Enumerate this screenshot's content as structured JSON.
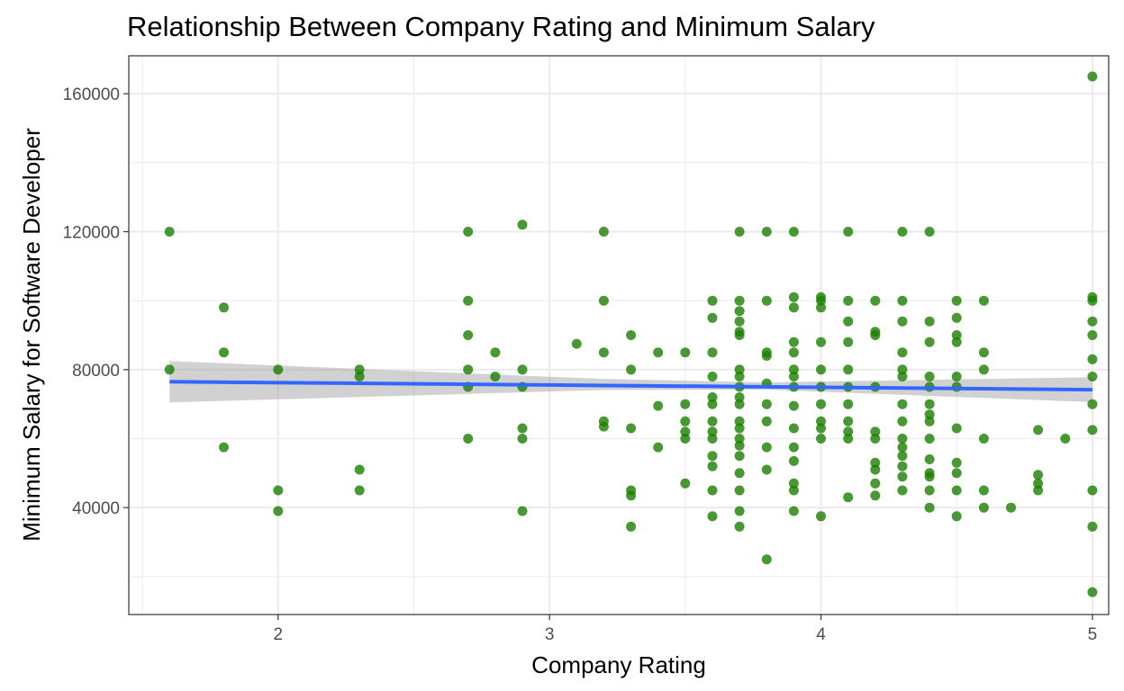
{
  "chart_data": {
    "type": "scatter",
    "title": "Relationship Between Company Rating and Minimum Salary",
    "xlabel": "Company Rating",
    "ylabel": "Minimum Salary for Software Developer",
    "xlim": [
      1.45,
      5.06
    ],
    "ylim": [
      9000,
      171000
    ],
    "x_ticks": [
      2,
      3,
      4,
      5
    ],
    "x_tick_labels": [
      "2",
      "3",
      "4",
      "5"
    ],
    "x_minor_ticks": [
      1.5,
      2.5,
      3.5,
      4.5
    ],
    "y_ticks": [
      40000,
      80000,
      120000,
      160000
    ],
    "y_tick_labels": [
      "40000",
      "80000",
      "120000",
      "160000"
    ],
    "y_minor_ticks": [
      20000,
      60000,
      100000,
      140000
    ],
    "grid": true,
    "legend": "none",
    "colors": {
      "points": "#1a8000",
      "fit_line": "#3366ff",
      "confidence_band": "#999999",
      "grid": "#ebebeb",
      "panel_border": "#333333"
    },
    "series": [
      {
        "values": [
          [
            1.6,
            120000
          ],
          [
            1.6,
            80000
          ],
          [
            1.8,
            98000
          ],
          [
            1.8,
            85000
          ],
          [
            1.8,
            57500
          ],
          [
            2.0,
            80000
          ],
          [
            2.0,
            45000
          ],
          [
            2.0,
            39000
          ],
          [
            2.3,
            80000
          ],
          [
            2.3,
            78000
          ],
          [
            2.3,
            51000
          ],
          [
            2.3,
            45000
          ],
          [
            2.7,
            120000
          ],
          [
            2.7,
            100000
          ],
          [
            2.7,
            90000
          ],
          [
            2.7,
            80000
          ],
          [
            2.7,
            75000
          ],
          [
            2.7,
            60000
          ],
          [
            2.8,
            85000
          ],
          [
            2.8,
            78000
          ],
          [
            2.9,
            122000
          ],
          [
            2.9,
            80000
          ],
          [
            2.9,
            75000
          ],
          [
            2.9,
            63000
          ],
          [
            2.9,
            60000
          ],
          [
            2.9,
            39000
          ],
          [
            3.1,
            87500
          ],
          [
            3.2,
            120000
          ],
          [
            3.2,
            100000
          ],
          [
            3.2,
            85000
          ],
          [
            3.2,
            65000
          ],
          [
            3.2,
            63500
          ],
          [
            3.3,
            90000
          ],
          [
            3.3,
            80000
          ],
          [
            3.3,
            63000
          ],
          [
            3.3,
            45000
          ],
          [
            3.3,
            43500
          ],
          [
            3.3,
            34500
          ],
          [
            3.4,
            85000
          ],
          [
            3.4,
            69500
          ],
          [
            3.4,
            57500
          ],
          [
            3.5,
            85000
          ],
          [
            3.5,
            70000
          ],
          [
            3.5,
            65000
          ],
          [
            3.5,
            62000
          ],
          [
            3.5,
            60000
          ],
          [
            3.5,
            47000
          ],
          [
            3.6,
            100000
          ],
          [
            3.6,
            95000
          ],
          [
            3.6,
            85000
          ],
          [
            3.6,
            78000
          ],
          [
            3.6,
            72000
          ],
          [
            3.6,
            70000
          ],
          [
            3.6,
            65000
          ],
          [
            3.6,
            62000
          ],
          [
            3.6,
            60000
          ],
          [
            3.6,
            55000
          ],
          [
            3.6,
            52000
          ],
          [
            3.6,
            45000
          ],
          [
            3.6,
            37500
          ],
          [
            3.7,
            120000
          ],
          [
            3.7,
            100000
          ],
          [
            3.7,
            97000
          ],
          [
            3.7,
            94000
          ],
          [
            3.7,
            91000
          ],
          [
            3.7,
            90000
          ],
          [
            3.7,
            80000
          ],
          [
            3.7,
            78000
          ],
          [
            3.7,
            75000
          ],
          [
            3.7,
            72000
          ],
          [
            3.7,
            70000
          ],
          [
            3.7,
            65000
          ],
          [
            3.7,
            63000
          ],
          [
            3.7,
            60000
          ],
          [
            3.7,
            58000
          ],
          [
            3.7,
            55000
          ],
          [
            3.7,
            50000
          ],
          [
            3.7,
            45000
          ],
          [
            3.7,
            39000
          ],
          [
            3.7,
            34500
          ],
          [
            3.8,
            120000
          ],
          [
            3.8,
            100000
          ],
          [
            3.8,
            85000
          ],
          [
            3.8,
            84000
          ],
          [
            3.8,
            76000
          ],
          [
            3.8,
            70000
          ],
          [
            3.8,
            65000
          ],
          [
            3.8,
            57500
          ],
          [
            3.8,
            51000
          ],
          [
            3.8,
            25000
          ],
          [
            3.9,
            120000
          ],
          [
            3.9,
            101000
          ],
          [
            3.9,
            98000
          ],
          [
            3.9,
            88000
          ],
          [
            3.9,
            85000
          ],
          [
            3.9,
            80000
          ],
          [
            3.9,
            78000
          ],
          [
            3.9,
            75000
          ],
          [
            3.9,
            69500
          ],
          [
            3.9,
            63000
          ],
          [
            3.9,
            57500
          ],
          [
            3.9,
            53500
          ],
          [
            3.9,
            47000
          ],
          [
            3.9,
            45000
          ],
          [
            3.9,
            39000
          ],
          [
            4.0,
            101000
          ],
          [
            4.0,
            100000
          ],
          [
            4.0,
            98000
          ],
          [
            4.0,
            88000
          ],
          [
            4.0,
            80000
          ],
          [
            4.0,
            75000
          ],
          [
            4.0,
            70000
          ],
          [
            4.0,
            65000
          ],
          [
            4.0,
            63000
          ],
          [
            4.0,
            60000
          ],
          [
            4.0,
            37500
          ],
          [
            4.1,
            120000
          ],
          [
            4.1,
            100000
          ],
          [
            4.1,
            94000
          ],
          [
            4.1,
            88000
          ],
          [
            4.1,
            80000
          ],
          [
            4.1,
            75000
          ],
          [
            4.1,
            70000
          ],
          [
            4.1,
            65000
          ],
          [
            4.1,
            62000
          ],
          [
            4.1,
            60000
          ],
          [
            4.1,
            43000
          ],
          [
            4.2,
            100000
          ],
          [
            4.2,
            91000
          ],
          [
            4.2,
            90000
          ],
          [
            4.2,
            75000
          ],
          [
            4.2,
            62000
          ],
          [
            4.2,
            60000
          ],
          [
            4.2,
            53000
          ],
          [
            4.2,
            51000
          ],
          [
            4.2,
            47000
          ],
          [
            4.2,
            43500
          ],
          [
            4.3,
            120000
          ],
          [
            4.3,
            100000
          ],
          [
            4.3,
            94000
          ],
          [
            4.3,
            85000
          ],
          [
            4.3,
            80000
          ],
          [
            4.3,
            78000
          ],
          [
            4.3,
            70000
          ],
          [
            4.3,
            65000
          ],
          [
            4.3,
            60000
          ],
          [
            4.3,
            57500
          ],
          [
            4.3,
            55000
          ],
          [
            4.3,
            52000
          ],
          [
            4.3,
            49000
          ],
          [
            4.3,
            45000
          ],
          [
            4.4,
            120000
          ],
          [
            4.4,
            94000
          ],
          [
            4.4,
            88000
          ],
          [
            4.4,
            78000
          ],
          [
            4.4,
            75000
          ],
          [
            4.4,
            70000
          ],
          [
            4.4,
            67000
          ],
          [
            4.4,
            65000
          ],
          [
            4.4,
            60000
          ],
          [
            4.4,
            54000
          ],
          [
            4.4,
            50000
          ],
          [
            4.4,
            49000
          ],
          [
            4.4,
            45000
          ],
          [
            4.4,
            40000
          ],
          [
            4.5,
            100000
          ],
          [
            4.5,
            95000
          ],
          [
            4.5,
            90000
          ],
          [
            4.5,
            88000
          ],
          [
            4.5,
            78000
          ],
          [
            4.5,
            75000
          ],
          [
            4.5,
            63000
          ],
          [
            4.5,
            53000
          ],
          [
            4.5,
            50000
          ],
          [
            4.5,
            45000
          ],
          [
            4.5,
            37500
          ],
          [
            4.6,
            100000
          ],
          [
            4.6,
            85000
          ],
          [
            4.6,
            80000
          ],
          [
            4.6,
            60000
          ],
          [
            4.6,
            45000
          ],
          [
            4.6,
            40000
          ],
          [
            4.7,
            40000
          ],
          [
            4.8,
            62500
          ],
          [
            4.8,
            49500
          ],
          [
            4.8,
            47000
          ],
          [
            4.8,
            45000
          ],
          [
            4.9,
            60000
          ],
          [
            5.0,
            165000
          ],
          [
            5.0,
            101000
          ],
          [
            5.0,
            100000
          ],
          [
            5.0,
            94000
          ],
          [
            5.0,
            90000
          ],
          [
            5.0,
            83000
          ],
          [
            5.0,
            78000
          ],
          [
            5.0,
            70000
          ],
          [
            5.0,
            62500
          ],
          [
            5.0,
            45000
          ],
          [
            5.0,
            34500
          ],
          [
            5.0,
            15500
          ]
        ]
      }
    ],
    "fit_line": {
      "method": "linear",
      "points": [
        [
          1.6,
          76500
        ],
        [
          5.0,
          74200
        ]
      ],
      "band_upper": [
        [
          1.6,
          82500
        ],
        [
          3.2,
          77300
        ],
        [
          3.8,
          76300
        ],
        [
          5.0,
          77800
        ]
      ],
      "band_lower": [
        [
          1.6,
          70500
        ],
        [
          3.2,
          74100
        ],
        [
          3.8,
          74200
        ],
        [
          5.0,
          70600
        ]
      ]
    }
  }
}
